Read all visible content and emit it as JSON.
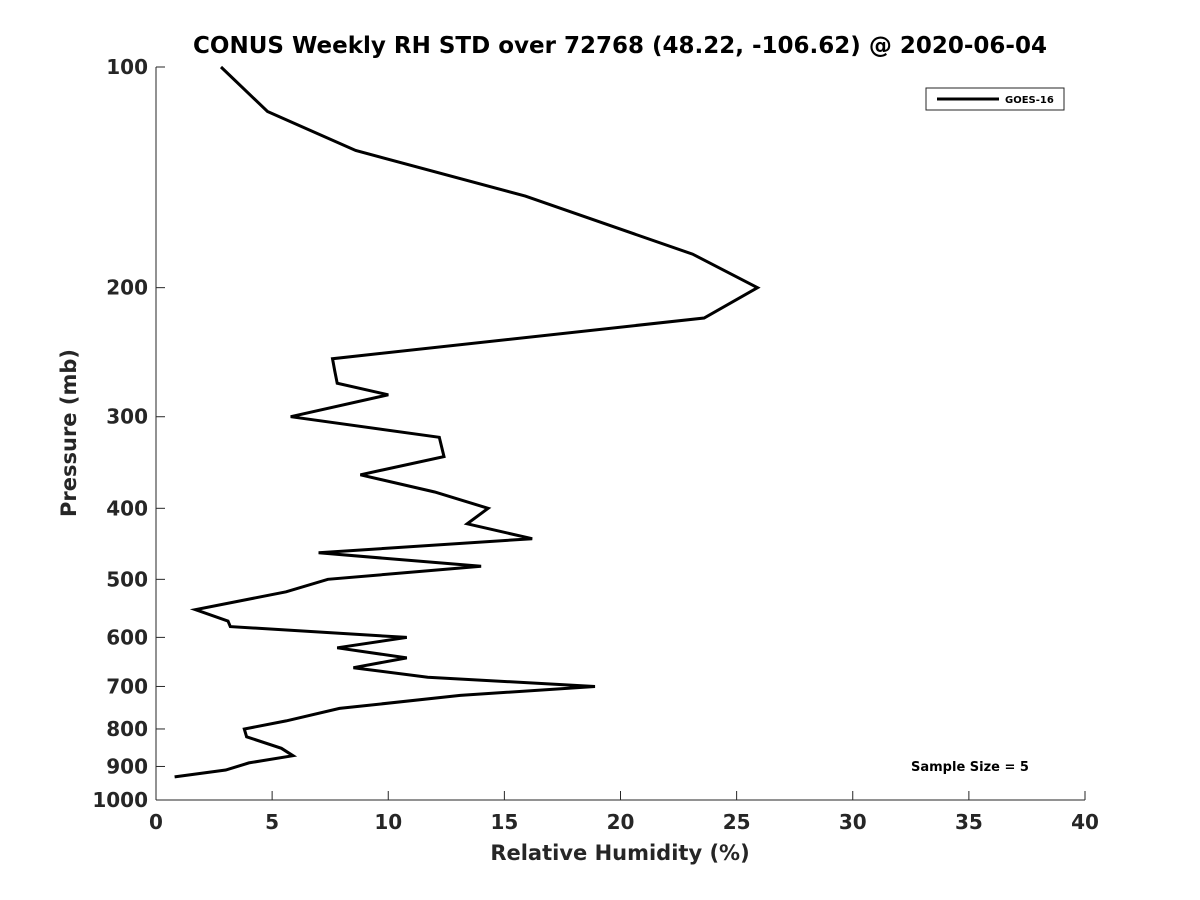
{
  "chart_data": {
    "type": "line",
    "title": "CONUS Weekly RH STD over 72768 (48.22, -106.62) @ 2020-06-04",
    "xlabel": "Relative Humidity (%)",
    "ylabel": "Pressure (mb)",
    "xlim": [
      0,
      40
    ],
    "ylim": [
      100,
      1000
    ],
    "y_scale": "log",
    "y_reversed": true,
    "x_ticks": [
      "0",
      "5",
      "10",
      "15",
      "20",
      "25",
      "30",
      "35",
      "40"
    ],
    "y_ticks": [
      "100",
      "200",
      "300",
      "400",
      "500",
      "600",
      "700",
      "800",
      "900",
      "1000"
    ],
    "legend_position": "top-right",
    "grid": false,
    "annotation": "Sample Size = 5",
    "series": [
      {
        "name": "GOES-16",
        "color": "#000000",
        "x": [
          2.8,
          4.8,
          8.6,
          15.9,
          23.1,
          25.9,
          23.6,
          7.6,
          7.7,
          7.8,
          10.0,
          5.8,
          12.2,
          12.4,
          8.8,
          12.0,
          14.3,
          13.4,
          16.2,
          7.0,
          14.0,
          7.4,
          5.6,
          1.7,
          3.1,
          3.2,
          10.8,
          7.8,
          10.8,
          8.5,
          11.7,
          18.9,
          13.1,
          7.9,
          5.6,
          3.8,
          3.9,
          5.4,
          5.9,
          4.0,
          3.0,
          0.8
        ],
        "y": [
          100,
          115,
          130,
          150,
          180,
          200,
          220,
          250,
          260,
          270,
          280,
          300,
          320,
          340,
          360,
          380,
          400,
          420,
          440,
          460,
          480,
          500,
          520,
          550,
          570,
          580,
          600,
          620,
          640,
          660,
          680,
          700,
          720,
          750,
          780,
          800,
          820,
          850,
          870,
          890,
          910,
          930
        ]
      }
    ]
  }
}
